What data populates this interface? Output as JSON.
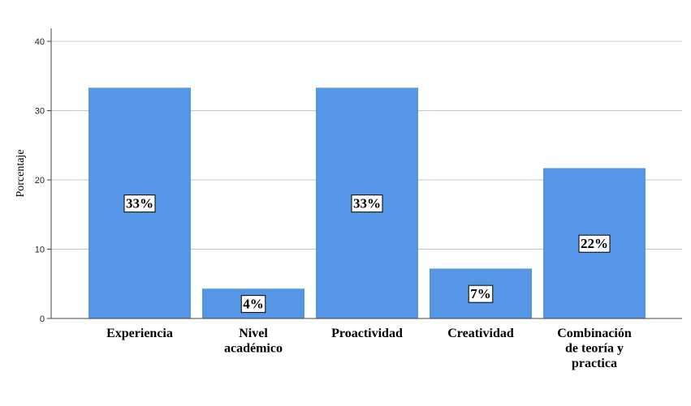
{
  "chart_data": {
    "type": "bar",
    "categories": [
      [
        "Experiencia"
      ],
      [
        "Nivel",
        "académico"
      ],
      [
        "Proactividad"
      ],
      [
        "Creatividad"
      ],
      [
        "Combinación",
        "de teoría y",
        "practica"
      ]
    ],
    "values": [
      33.3,
      4.3,
      33.3,
      7.2,
      21.7
    ],
    "data_labels": [
      "33%",
      "4%",
      "33%",
      "7%",
      "22%"
    ],
    "ylabel": "Porcentaje",
    "ylim": [
      0,
      40
    ],
    "yticks": [
      0,
      10,
      20,
      30,
      40
    ],
    "grid": true,
    "bar_color": "#5596e6",
    "grid_color": "#c8c8c8"
  }
}
